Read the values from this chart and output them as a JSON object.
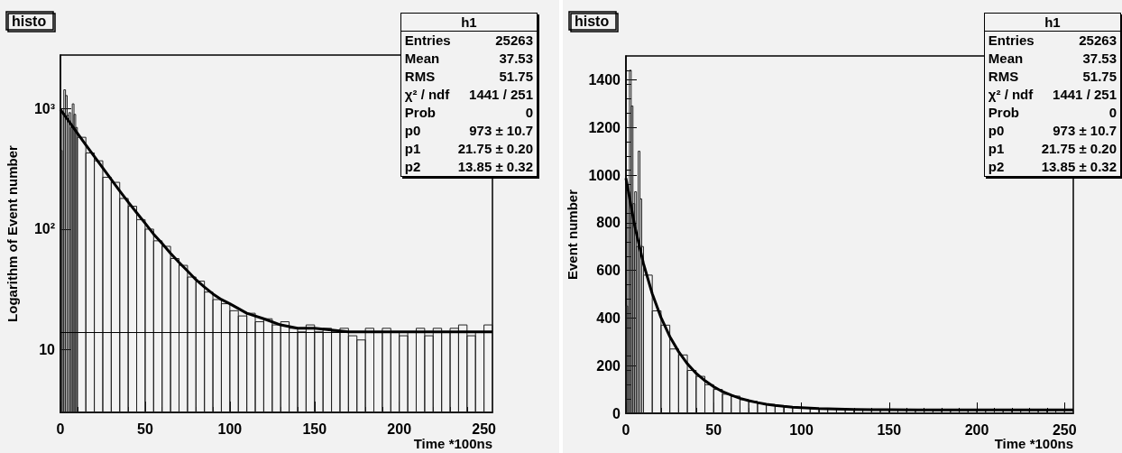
{
  "chart_data": [
    {
      "type": "histogram",
      "title": "histo",
      "xlabel": "Time *100ns",
      "ylabel": "Logarithm of Event number",
      "log": "y",
      "marker": "none",
      "xlim": [
        0,
        255
      ],
      "xticks": [
        0,
        50,
        100,
        150,
        200,
        250
      ],
      "ylim": [
        3,
        2800
      ],
      "yticks": [
        10,
        {
          "value": 100,
          "label": "10²"
        },
        {
          "value": 1000,
          "label": "10³"
        }
      ],
      "ref_lines": [
        {
          "axis": "y",
          "value": 14,
          "color": "#000000",
          "line_style": "solid"
        }
      ],
      "annotations": [
        "h1",
        "Entries",
        "25263",
        "Mean",
        "37.53",
        "RMS",
        "51.75",
        "χ² / ndf",
        "1441 / 251",
        "Prob",
        "0",
        "p0",
        "973 ± 10.7",
        "p1",
        "21.75 ± 0.20",
        "p2",
        "13.85 ± 0.32"
      ],
      "series": [
        {
          "color": "#222222",
          "bins": [
            0,
            1,
            2,
            3,
            4,
            5,
            6,
            7,
            8,
            9,
            10,
            15,
            20,
            25,
            30,
            35,
            40,
            45,
            50,
            55,
            60,
            65,
            70,
            75,
            80,
            85,
            90,
            95,
            100,
            105,
            110,
            115,
            120,
            125,
            130,
            135,
            140,
            145,
            150,
            155,
            160,
            165,
            170,
            175,
            180,
            185,
            190,
            195,
            200,
            205,
            210,
            215,
            220,
            225,
            230,
            235,
            240,
            245,
            250,
            255
          ],
          "values": [
            450,
            930,
            1440,
            1290,
            880,
            930,
            700,
            1100,
            900,
            700,
            580,
            430,
            370,
            270,
            245,
            180,
            155,
            120,
            100,
            80,
            72,
            57,
            50,
            40,
            37,
            30,
            26,
            24,
            21,
            19,
            20,
            17,
            18,
            16,
            17,
            15,
            14,
            16,
            14,
            15,
            14,
            15,
            13,
            12,
            15,
            14,
            15,
            14,
            13,
            14,
            15,
            13,
            15,
            14,
            15,
            16,
            13,
            14,
            16
          ]
        },
        {
          "type": "line",
          "color": "#000000",
          "x": [
            0,
            5,
            10,
            15,
            20,
            25,
            30,
            35,
            40,
            45,
            50,
            55,
            60,
            65,
            70,
            75,
            80,
            85,
            90,
            95,
            100,
            110,
            120,
            130,
            140,
            150,
            170,
            200,
            230,
            255
          ],
          "values": [
            987,
            787,
            628,
            502,
            402,
            322,
            259,
            208,
            168,
            137,
            112,
            91,
            76,
            63,
            53,
            45,
            38,
            33,
            29,
            26,
            24,
            20,
            18,
            16,
            15,
            15,
            14,
            14,
            14,
            14
          ]
        }
      ]
    },
    {
      "type": "histogram",
      "title": "histo",
      "xlabel": "Time *100ns",
      "ylabel": "Event number",
      "marker": "none",
      "xlim": [
        0,
        255
      ],
      "xticks": [
        0,
        50,
        100,
        150,
        200,
        250
      ],
      "ylim": [
        0,
        1500
      ],
      "yticks": [
        0,
        200,
        400,
        600,
        800,
        1000,
        1200,
        1400
      ],
      "annotations": [
        "h1",
        "Entries",
        "25263",
        "Mean",
        "37.53",
        "RMS",
        "51.75",
        "χ² / ndf",
        "1441 / 251",
        "Prob",
        "0",
        "p0",
        "973 ± 10.7",
        "p1",
        "21.75 ± 0.20",
        "p2",
        "13.85 ± 0.32"
      ],
      "series": [
        {
          "color": "#222222",
          "bins": [
            0,
            1,
            2,
            3,
            4,
            5,
            6,
            7,
            8,
            9,
            10,
            15,
            20,
            25,
            30,
            35,
            40,
            45,
            50,
            55,
            60,
            65,
            70,
            75,
            80,
            85,
            90,
            95,
            100,
            105,
            110,
            115,
            120,
            125,
            130,
            135,
            140,
            145,
            150,
            155,
            160,
            165,
            170,
            175,
            180,
            185,
            190,
            195,
            200,
            205,
            210,
            215,
            220,
            225,
            230,
            235,
            240,
            245,
            250,
            255
          ],
          "values": [
            450,
            930,
            1440,
            1290,
            880,
            930,
            700,
            1100,
            900,
            700,
            580,
            430,
            370,
            270,
            245,
            180,
            155,
            120,
            100,
            80,
            72,
            57,
            50,
            40,
            37,
            30,
            26,
            24,
            21,
            19,
            20,
            17,
            18,
            16,
            17,
            15,
            14,
            16,
            14,
            15,
            14,
            15,
            13,
            12,
            15,
            14,
            15,
            14,
            13,
            14,
            15,
            13,
            15,
            14,
            15,
            16,
            13,
            14,
            16
          ]
        },
        {
          "type": "line",
          "color": "#000000",
          "x": [
            0,
            5,
            10,
            15,
            20,
            25,
            30,
            35,
            40,
            45,
            50,
            55,
            60,
            65,
            70,
            75,
            80,
            85,
            90,
            95,
            100,
            110,
            120,
            130,
            140,
            150,
            170,
            200,
            230,
            255
          ],
          "values": [
            987,
            787,
            628,
            502,
            402,
            322,
            259,
            208,
            168,
            137,
            112,
            91,
            76,
            63,
            53,
            45,
            38,
            33,
            29,
            26,
            24,
            20,
            18,
            16,
            15,
            15,
            14,
            14,
            14,
            14
          ]
        }
      ]
    }
  ]
}
